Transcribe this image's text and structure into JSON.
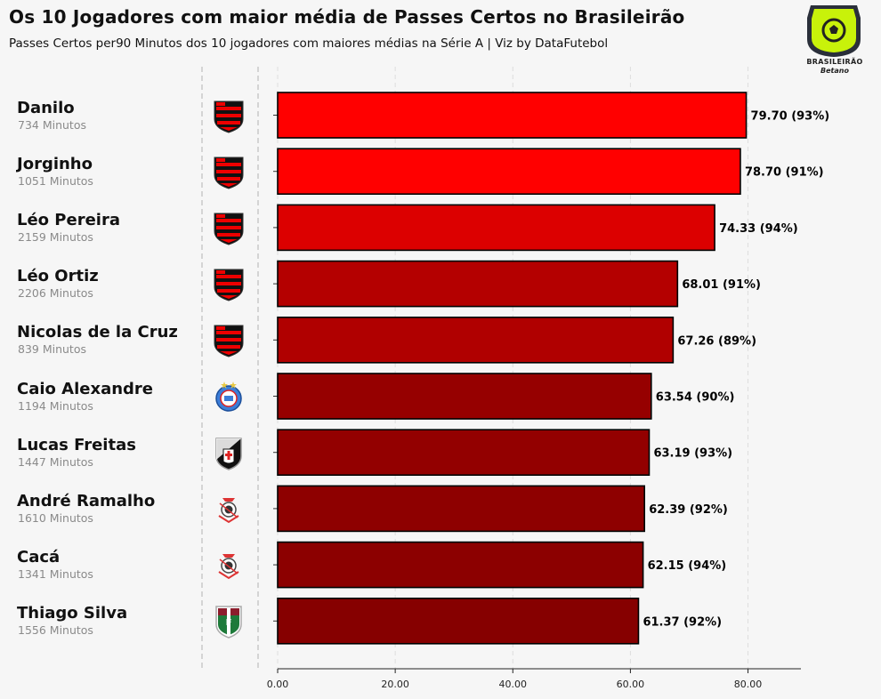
{
  "title": "Os 10 Jogadores com maior média de Passes Certos no Brasileirão",
  "subtitle": "Passes Certos per90 Minutos dos 10 jogadores com maiores médias na Série A | Viz by DataFutebol",
  "logo": {
    "line1": "BRASILEIRÃO",
    "line2": "Betano",
    "color": "#c8f20a"
  },
  "players": [
    {
      "name": "Danilo",
      "minutes": "734 Minutos",
      "club": "flamengo"
    },
    {
      "name": "Jorginho",
      "minutes": "1051 Minutos",
      "club": "flamengo"
    },
    {
      "name": "Léo Pereira",
      "minutes": "2159 Minutos",
      "club": "flamengo"
    },
    {
      "name": "Léo Ortiz",
      "minutes": "2206 Minutos",
      "club": "flamengo"
    },
    {
      "name": "Nicolas de la Cruz",
      "minutes": "839 Minutos",
      "club": "flamengo"
    },
    {
      "name": "Caio Alexandre",
      "minutes": "1194 Minutos",
      "club": "bahia"
    },
    {
      "name": "Lucas Freitas",
      "minutes": "1447 Minutos",
      "club": "vasco"
    },
    {
      "name": "André Ramalho",
      "minutes": "1610 Minutos",
      "club": "corinthians"
    },
    {
      "name": "Cacá",
      "minutes": "1341 Minutos",
      "club": "corinthians"
    },
    {
      "name": "Thiago Silva",
      "minutes": "1556 Minutos",
      "club": "fluminense"
    }
  ],
  "chart_data": {
    "type": "bar",
    "orientation": "horizontal",
    "title": "Os 10 Jogadores com maior média de Passes Certos no Brasileirão",
    "xlabel": "",
    "ylabel": "",
    "xlim": [
      0,
      89
    ],
    "xticks": [
      0,
      20,
      40,
      60,
      80
    ],
    "xtick_labels": [
      "0.00",
      "20.00",
      "40.00",
      "60.00",
      "80.00"
    ],
    "grid": "vertical dashed",
    "categories": [
      "Danilo",
      "Jorginho",
      "Léo Pereira",
      "Léo Ortiz",
      "Nicolas de la Cruz",
      "Caio Alexandre",
      "Lucas Freitas",
      "André Ramalho",
      "Cacá",
      "Thiago Silva"
    ],
    "values": [
      79.7,
      78.7,
      74.33,
      68.01,
      67.26,
      63.54,
      63.19,
      62.39,
      62.15,
      61.37
    ],
    "labels": [
      "79.70 (93%)",
      "78.70 (91%)",
      "74.33 (94%)",
      "68.01 (91%)",
      "67.26 (89%)",
      "63.54 (90%)",
      "63.19 (93%)",
      "62.39 (92%)",
      "62.15 (94%)",
      "61.37 (92%)"
    ],
    "bar_colors": [
      "#ff0000",
      "#ff0000",
      "#dc0000",
      "#b40000",
      "#b00000",
      "#960000",
      "#930000",
      "#8e0000",
      "#8c0000",
      "#860000"
    ]
  }
}
